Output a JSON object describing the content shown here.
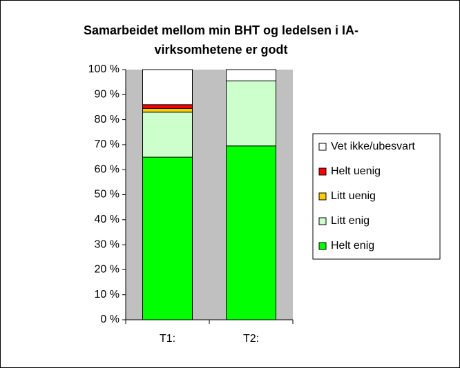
{
  "chart_data": {
    "type": "stacked_bar",
    "title": [
      "Samarbeidet mellom min BHT og ledelsen i IA-",
      "virksomhetene er godt"
    ],
    "categories": [
      "T1:",
      "T2:"
    ],
    "series": [
      {
        "name": "Helt enig",
        "color": "#00ff00",
        "values": [
          65,
          69.5
        ]
      },
      {
        "name": "Litt enig",
        "color": "#ccffcc",
        "values": [
          18,
          26
        ]
      },
      {
        "name": "Litt uenig",
        "color": "#ffcc00",
        "values": [
          1.5,
          0
        ]
      },
      {
        "name": "Helt uenig",
        "color": "#ff0000",
        "values": [
          1.5,
          0
        ]
      },
      {
        "name": "Vet ikke/ubesvart",
        "color": "#ffffff",
        "values": [
          14,
          4.5
        ]
      }
    ],
    "ylim": [
      0,
      100
    ],
    "yticks": [
      {
        "value": 0,
        "label": "0 %"
      },
      {
        "value": 10,
        "label": "10 %"
      },
      {
        "value": 20,
        "label": "20 %"
      },
      {
        "value": 30,
        "label": "30 %"
      },
      {
        "value": 40,
        "label": "40 %"
      },
      {
        "value": 50,
        "label": "50 %"
      },
      {
        "value": 60,
        "label": "60 %"
      },
      {
        "value": 70,
        "label": "70 %"
      },
      {
        "value": 80,
        "label": "80 %"
      },
      {
        "value": 90,
        "label": "90 %"
      },
      {
        "value": 100,
        "label": "100 %"
      }
    ],
    "plot_background": "#c0c0c0",
    "legend": "right"
  }
}
